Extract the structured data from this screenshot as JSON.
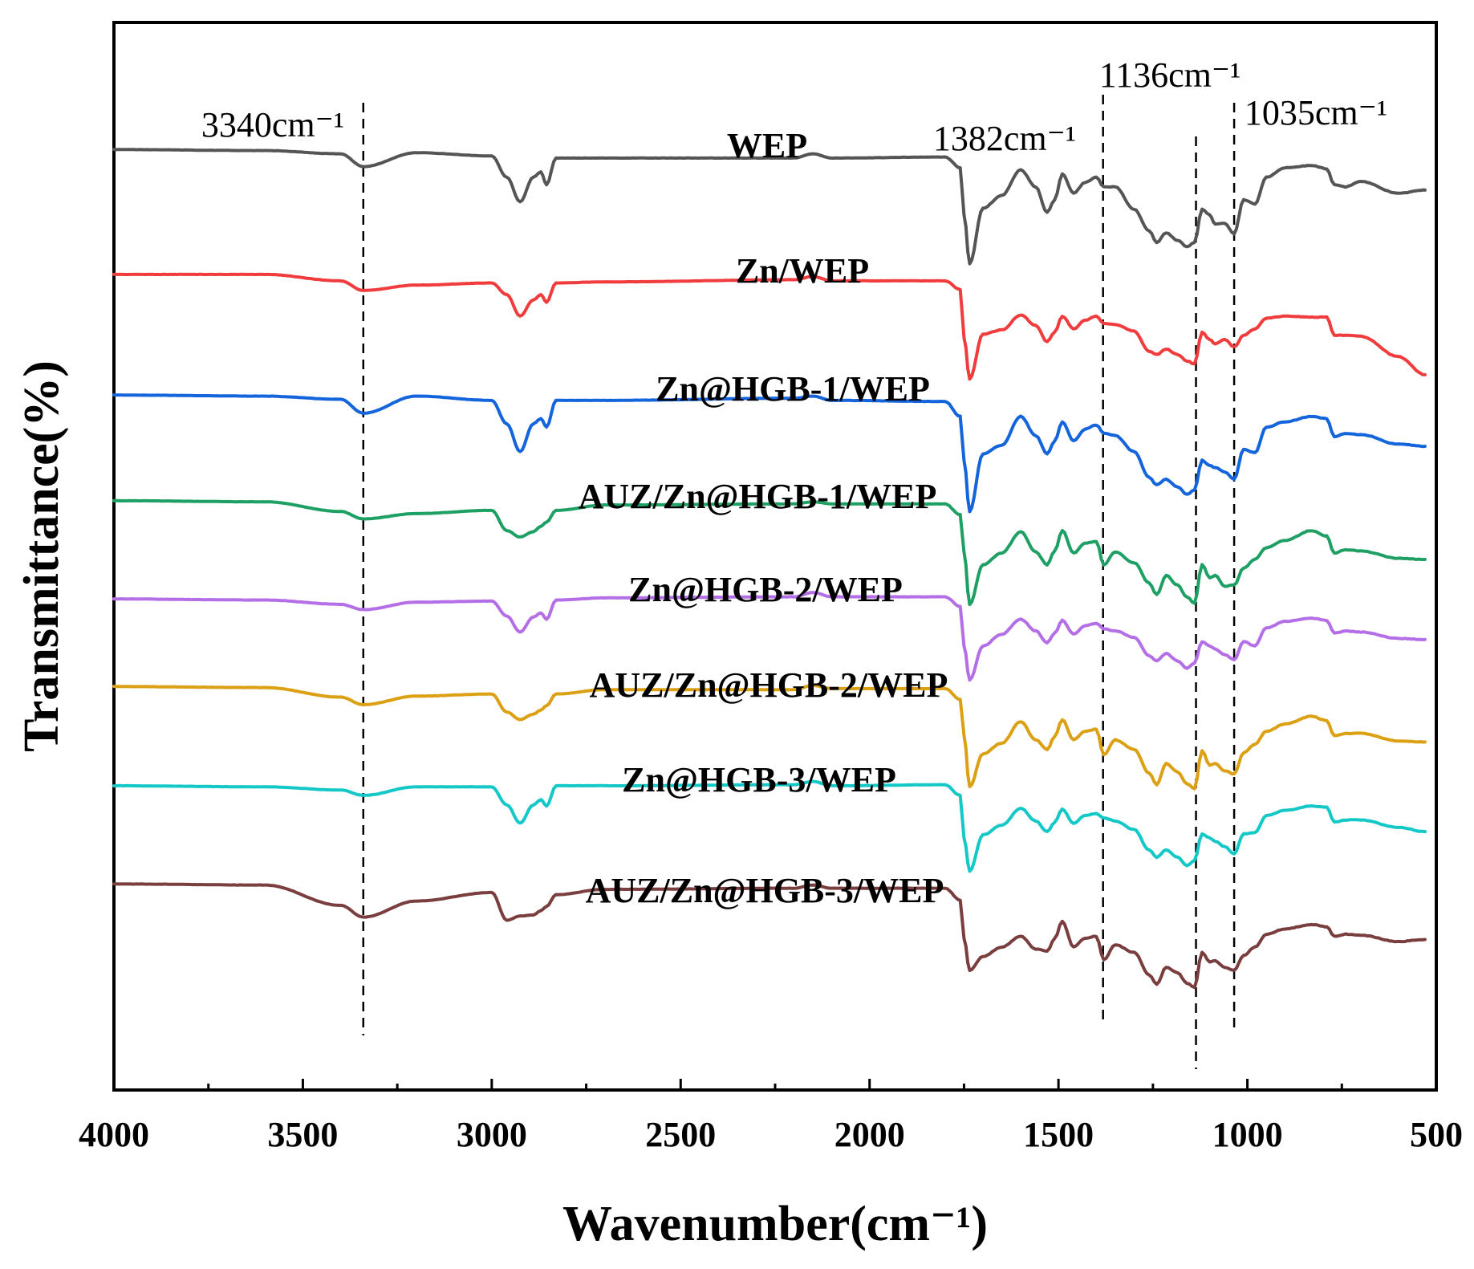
{
  "chart_data": {
    "type": "line",
    "title": "",
    "xlabel": "Wavenumber(cm⁻¹)",
    "ylabel": "Transmittance(%)",
    "xlim": [
      4000,
      500
    ],
    "x_reversed": true,
    "y_ticks_shown": false,
    "x_ticks": [
      4000,
      3500,
      3000,
      2500,
      2000,
      1500,
      1000,
      500
    ],
    "x_tick_labels": [
      "4000",
      "3500",
      "3000",
      "2500",
      "2000",
      "1500",
      "1000",
      "500"
    ],
    "ylim": [
      0,
      100
    ],
    "markers": [
      {
        "wavenumber": 3340,
        "label": "3340cm⁻¹"
      },
      {
        "wavenumber": 1382,
        "label": "1382cm⁻¹"
      },
      {
        "wavenumber": 1136,
        "label": "1136cm⁻¹"
      },
      {
        "wavenumber": 1035,
        "label": "1035cm⁻¹"
      }
    ],
    "x": [
      4000,
      3600,
      3400,
      3340,
      3200,
      3000,
      2960,
      2925,
      2890,
      2870,
      2855,
      2830,
      2700,
      2200,
      2150,
      2100,
      1800,
      1760,
      1750,
      1735,
      1700,
      1650,
      1600,
      1560,
      1530,
      1510,
      1490,
      1460,
      1430,
      1400,
      1380,
      1350,
      1300,
      1260,
      1240,
      1215,
      1185,
      1160,
      1140,
      1120,
      1100,
      1085,
      1060,
      1035,
      1010,
      980,
      950,
      900,
      830,
      790,
      770,
      740,
      700,
      600,
      530
    ],
    "series": [
      {
        "name": "WEP",
        "color": "#555555",
        "values": [
          88.1,
          88.0,
          87.7,
          86.5,
          87.8,
          87.5,
          85.5,
          83.2,
          85.5,
          86.0,
          84.8,
          87.3,
          87.3,
          87.3,
          87.7,
          87.3,
          87.4,
          86.4,
          82.0,
          77.4,
          82.6,
          83.8,
          86.2,
          84.6,
          82.2,
          83.4,
          85.8,
          84.0,
          85.0,
          85.5,
          84.6,
          84.6,
          82.5,
          80.5,
          79.4,
          80.3,
          79.6,
          79.0,
          79.4,
          82.5,
          82.0,
          81.1,
          81.2,
          80.2,
          83.4,
          83.0,
          85.5,
          86.4,
          86.6,
          86.3,
          84.8,
          84.6,
          85.1,
          84.0,
          84.3
        ]
      },
      {
        "name": "Zn/WEP",
        "color": "#f03c3c",
        "values": [
          76.4,
          76.4,
          75.8,
          74.9,
          75.4,
          75.6,
          74.5,
          72.5,
          74.0,
          74.5,
          73.8,
          75.6,
          75.7,
          75.9,
          76.2,
          75.8,
          75.8,
          75.0,
          70.5,
          66.6,
          70.8,
          71.2,
          72.6,
          71.6,
          70.1,
          71.0,
          72.5,
          71.3,
          72.1,
          72.5,
          71.8,
          71.7,
          71.1,
          69.2,
          68.9,
          69.4,
          68.9,
          68.3,
          68.0,
          71.0,
          70.3,
          69.9,
          70.3,
          69.6,
          70.7,
          71.3,
          72.3,
          72.5,
          72.4,
          72.4,
          70.7,
          70.7,
          70.6,
          68.7,
          67.0
        ]
      },
      {
        "name": "Zn@HGB-1/WEP",
        "color": "#1464dc",
        "values": [
          65.1,
          65.0,
          64.7,
          63.4,
          65.0,
          64.6,
          62.4,
          59.8,
          62.4,
          62.9,
          62.1,
          64.6,
          64.6,
          64.8,
          65.0,
          64.6,
          64.5,
          63.1,
          59.0,
          54.2,
          59.6,
          60.4,
          63.1,
          61.3,
          59.6,
          60.8,
          62.6,
          60.8,
          61.9,
          62.3,
          61.5,
          61.3,
          59.8,
          57.4,
          56.7,
          57.2,
          56.5,
          55.8,
          56.2,
          59.0,
          58.5,
          58.3,
          57.9,
          57.2,
          60.0,
          59.7,
          62.1,
          62.6,
          63.1,
          62.9,
          61.2,
          61.5,
          61.4,
          60.5,
          60.3
        ]
      },
      {
        "name": "AUZ/Zn@HGB-1/WEP",
        "color": "#1ea064",
        "values": [
          55.2,
          55.1,
          54.2,
          53.5,
          54.0,
          54.3,
          52.4,
          51.8,
          52.3,
          52.8,
          53.2,
          54.3,
          54.8,
          54.9,
          55.1,
          54.9,
          54.9,
          53.9,
          50.4,
          45.5,
          49.2,
          50.3,
          52.3,
          50.4,
          49.2,
          50.5,
          52.4,
          50.3,
          51.2,
          51.4,
          49.2,
          50.4,
          49.4,
          47.5,
          46.4,
          48.2,
          47.3,
          46.2,
          45.6,
          49.2,
          48.0,
          48.2,
          47.2,
          47.3,
          48.9,
          49.7,
          50.8,
          51.5,
          52.4,
          51.9,
          50.3,
          50.6,
          50.5,
          49.8,
          49.7
        ]
      },
      {
        "name": "Zn@HGB-2/WEP",
        "color": "#b46ee6",
        "values": [
          46.0,
          45.9,
          45.5,
          45.0,
          45.7,
          45.8,
          44.4,
          42.9,
          44.3,
          44.7,
          44.1,
          45.9,
          46.1,
          46.2,
          46.6,
          46.2,
          46.2,
          45.3,
          41.6,
          38.4,
          41.6,
          42.7,
          44.1,
          43.0,
          41.9,
          42.8,
          44.0,
          42.7,
          43.5,
          43.7,
          43.2,
          43.0,
          42.4,
          40.7,
          40.2,
          40.9,
          40.2,
          39.5,
          40.0,
          42.0,
          41.6,
          41.3,
          40.8,
          40.3,
          42.0,
          41.6,
          43.3,
          43.9,
          44.2,
          44.0,
          42.8,
          43.0,
          42.9,
          42.3,
          42.2
        ]
      },
      {
        "name": "AUZ/Zn@HGB-2/WEP",
        "color": "#dca014",
        "values": [
          37.8,
          37.7,
          36.8,
          36.1,
          36.9,
          37.1,
          35.4,
          34.7,
          35.2,
          35.6,
          36.0,
          37.1,
          37.5,
          37.5,
          37.9,
          37.6,
          37.6,
          36.6,
          33.2,
          28.4,
          31.5,
          32.5,
          34.5,
          32.8,
          31.9,
          33.1,
          34.7,
          32.8,
          33.6,
          33.8,
          31.4,
          32.8,
          31.9,
          29.7,
          28.6,
          30.6,
          29.8,
          28.7,
          28.2,
          31.8,
          30.4,
          30.6,
          29.9,
          29.6,
          31.6,
          32.4,
          33.6,
          34.3,
          35.0,
          34.6,
          33.2,
          33.4,
          33.4,
          32.7,
          32.6
        ]
      },
      {
        "name": "Zn@HGB-3/WEP",
        "color": "#14c8c8",
        "values": [
          28.5,
          28.4,
          28.1,
          27.6,
          28.4,
          28.4,
          26.7,
          25.0,
          26.7,
          27.2,
          26.6,
          28.5,
          28.5,
          28.6,
          28.9,
          28.5,
          28.6,
          27.6,
          23.6,
          20.5,
          23.9,
          24.8,
          26.4,
          25.2,
          24.2,
          25.1,
          26.3,
          25.0,
          25.7,
          25.9,
          25.5,
          25.2,
          24.4,
          22.5,
          21.8,
          22.5,
          21.8,
          21.0,
          21.5,
          24.0,
          23.6,
          23.3,
          22.8,
          22.1,
          24.0,
          24.1,
          25.7,
          26.2,
          26.6,
          26.5,
          25.1,
          25.3,
          25.3,
          24.6,
          24.2
        ]
      },
      {
        "name": "AUZ/Zn@HGB-3/WEP",
        "color": "#7a3e3e",
        "values": [
          19.3,
          19.2,
          17.3,
          16.2,
          17.7,
          18.5,
          15.9,
          16.3,
          16.4,
          16.8,
          17.2,
          18.3,
          18.8,
          18.9,
          19.2,
          18.9,
          18.9,
          17.8,
          14.2,
          11.2,
          12.5,
          13.4,
          14.4,
          13.2,
          13.0,
          14.2,
          15.8,
          13.4,
          14.2,
          14.4,
          12.2,
          13.6,
          12.9,
          10.8,
          9.9,
          11.5,
          11.0,
          10.0,
          9.6,
          12.9,
          12.0,
          12.1,
          11.5,
          11.2,
          12.6,
          13.4,
          14.6,
          15.1,
          15.5,
          15.3,
          14.4,
          14.6,
          14.5,
          13.9,
          14.1
        ]
      }
    ]
  }
}
